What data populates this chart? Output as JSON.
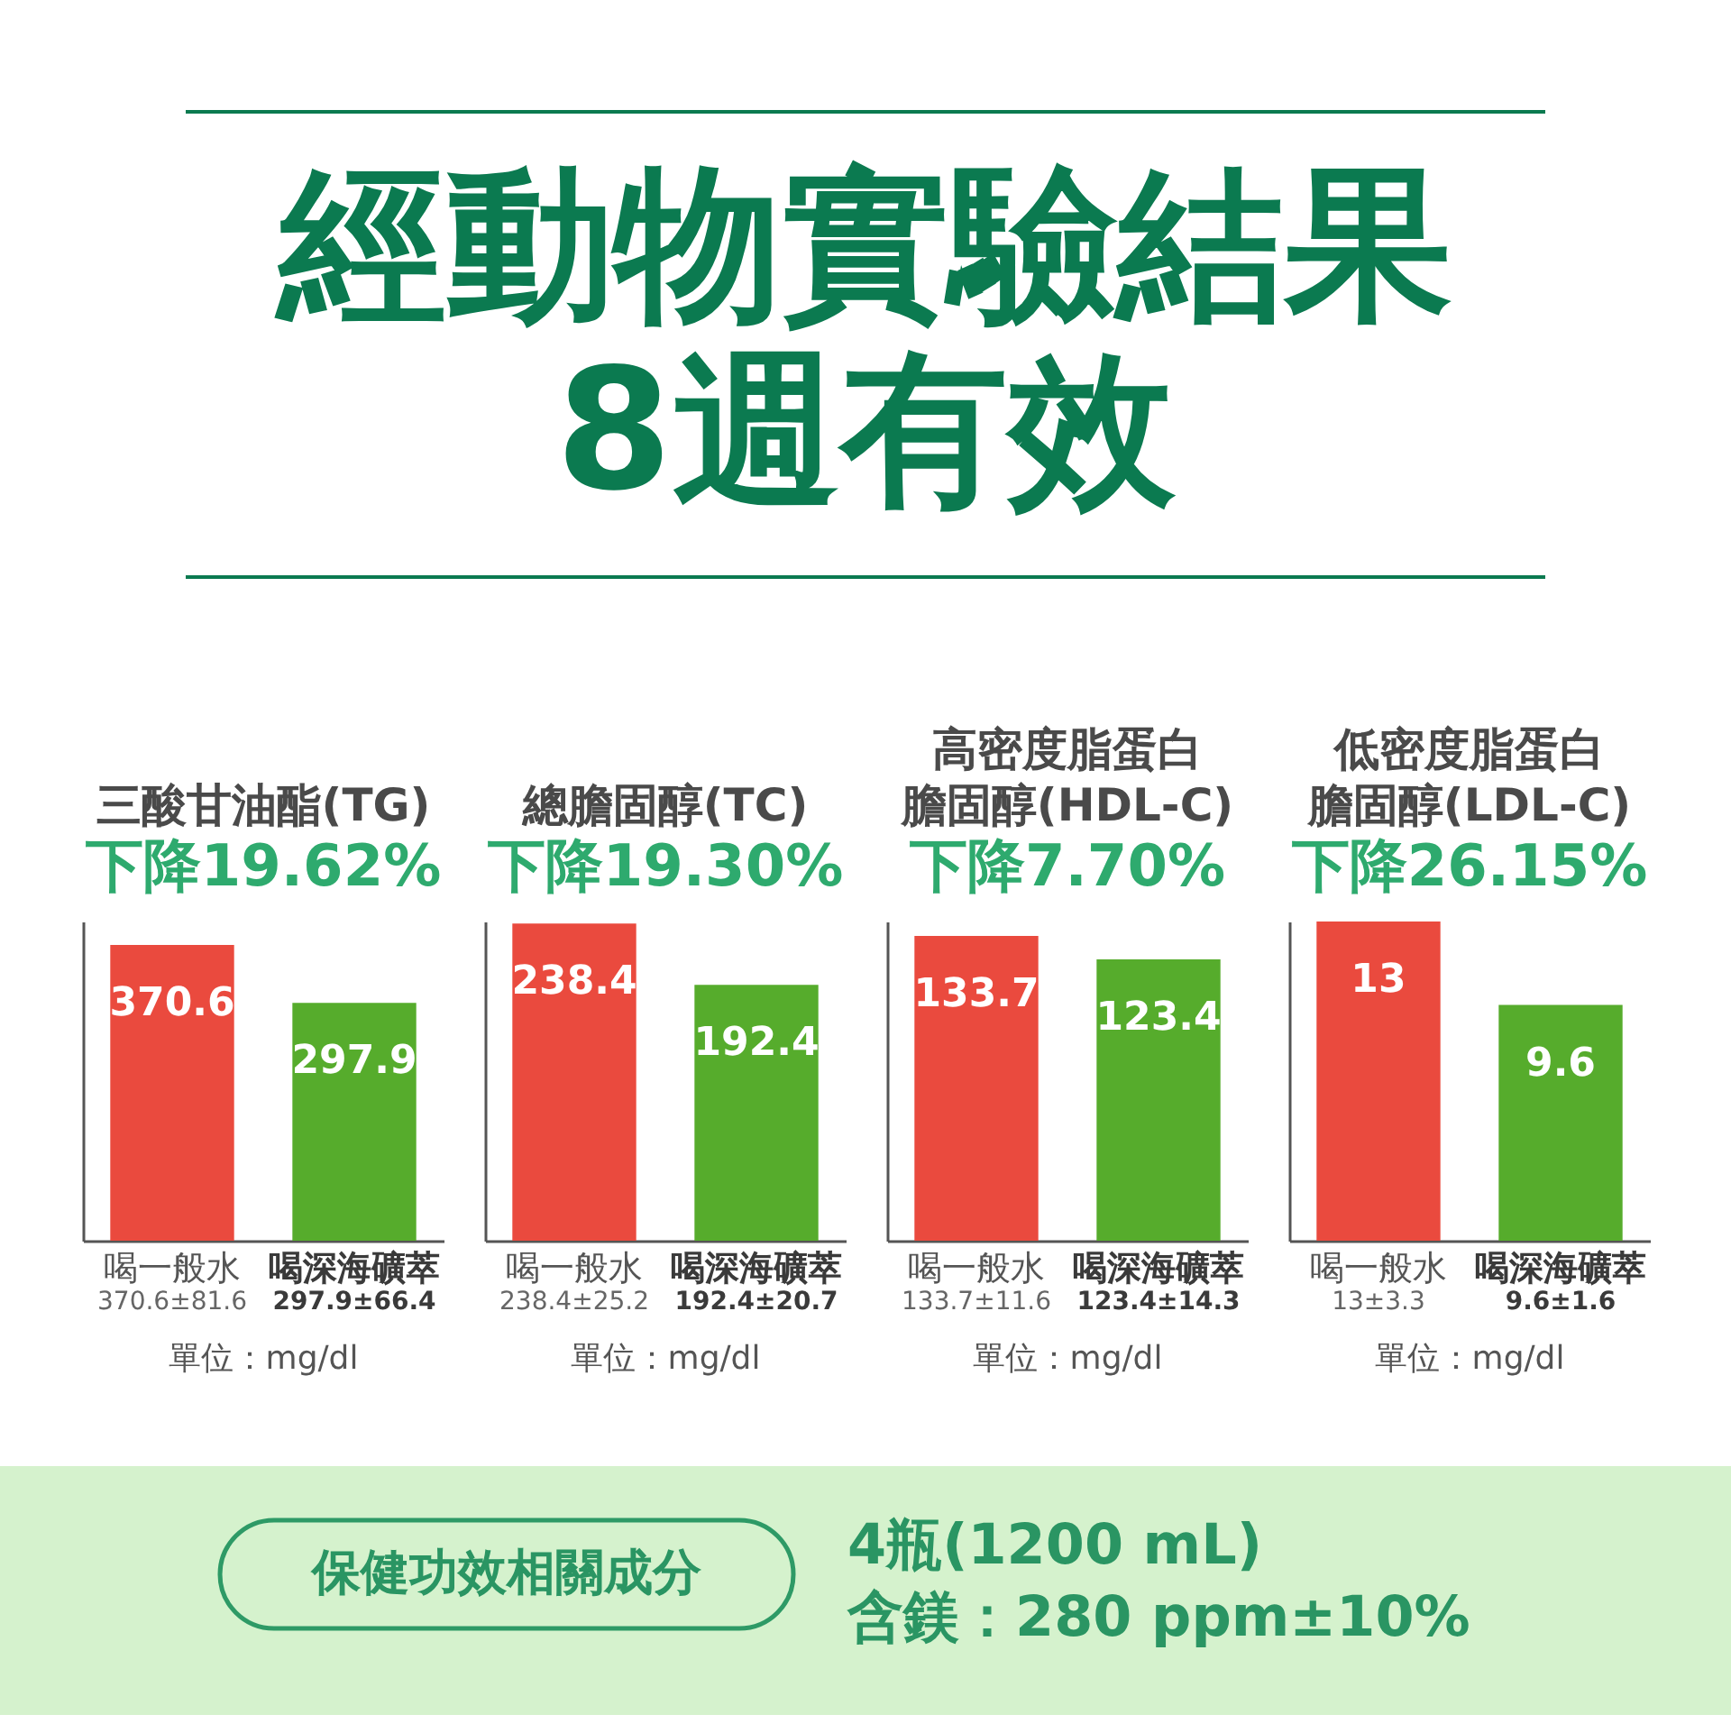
{
  "chart_data": [
    {
      "type": "other",
      "title": "經動物實驗結果",
      "subtitle": "8週有效"
    },
    {
      "type": "bar",
      "title": "三酸甘油酯(TG)",
      "subtitle": "下降19.62%",
      "categories": [
        "喝一般水",
        "喝深海礦萃"
      ],
      "values": [
        370.6,
        297.9
      ],
      "colors": [
        "#ea4a3e",
        "#56ac2c"
      ],
      "data_labels": true,
      "tick_labels": "x",
      "annotations": [
        "370.6±81.6",
        "297.9±66.4",
        "單位：mg/dl"
      ]
    },
    {
      "type": "bar",
      "title": "總膽固醇(TC)",
      "subtitle": "下降19.30%",
      "categories": [
        "喝一般水",
        "喝深海礦萃"
      ],
      "values": [
        238.4,
        192.4
      ],
      "colors": [
        "#ea4a3e",
        "#56ac2c"
      ],
      "data_labels": true,
      "tick_labels": "x",
      "annotations": [
        "238.4±25.2",
        "192.4±20.7",
        "單位：mg/dl"
      ]
    },
    {
      "type": "bar",
      "title": "高密度脂蛋白膽固醇(HDL-C)",
      "subtitle": "下降7.70%",
      "categories": [
        "喝一般水",
        "喝深海礦萃"
      ],
      "values": [
        133.7,
        123.4
      ],
      "colors": [
        "#ea4a3e",
        "#56ac2c"
      ],
      "data_labels": true,
      "tick_labels": "x",
      "annotations": [
        "133.7±11.6",
        "123.4±14.3",
        "單位：mg/dl"
      ]
    },
    {
      "type": "bar",
      "title": "低密度脂蛋白膽固醇(LDL-C)",
      "subtitle": "下降26.15%",
      "categories": [
        "喝一般水",
        "喝深海礦萃"
      ],
      "values": [
        13,
        9.6
      ],
      "colors": [
        "#ea4a3e",
        "#56ac2c"
      ],
      "data_labels": true,
      "tick_labels": "x",
      "annotations": [
        "13±3.3",
        "9.6±1.6",
        "單位：mg/dl"
      ]
    },
    {
      "type": "other",
      "annotations": [
        "保健功效相關成分",
        "4瓶(1200 mL)",
        "含鎂：280 ppm±10%"
      ]
    }
  ]
}
